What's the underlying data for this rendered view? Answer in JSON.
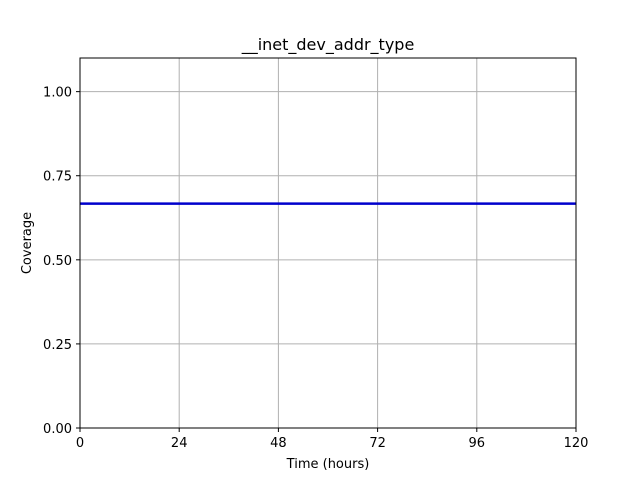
{
  "chart_data": {
    "type": "line",
    "title": "__inet_dev_addr_type",
    "xlabel": "Time (hours)",
    "ylabel": "Coverage",
    "xlim": [
      0,
      120
    ],
    "ylim": [
      0,
      1.1
    ],
    "xticks": [
      0,
      24,
      48,
      72,
      96,
      120
    ],
    "xtick_labels": [
      "0",
      "24",
      "48",
      "72",
      "96",
      "120"
    ],
    "yticks": [
      0,
      0.25,
      0.5,
      0.75,
      1.0
    ],
    "ytick_labels": [
      "0.00",
      "0.25",
      "0.50",
      "0.75",
      "1.00"
    ],
    "grid": true,
    "series": [
      {
        "color": "#0000cc",
        "x": [
          0,
          120
        ],
        "y": [
          0.667,
          0.667
        ]
      }
    ]
  }
}
